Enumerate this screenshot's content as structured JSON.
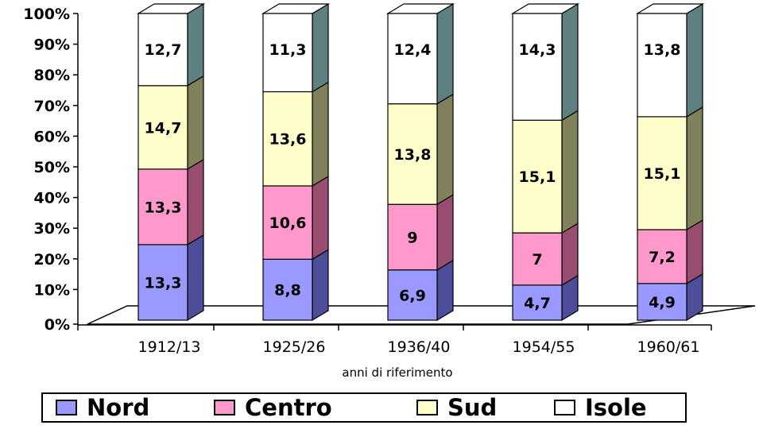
{
  "chart_data": {
    "type": "bar",
    "stacked": true,
    "three_d": true,
    "categories": [
      "1912/13",
      "1925/26",
      "1936/40",
      "1954/55",
      "1960/61"
    ],
    "series": [
      {
        "name": "Nord",
        "values": [
          13.3,
          8.8,
          6.9,
          4.7,
          4.9
        ],
        "labels": [
          "13,3",
          "8,8",
          "6,9",
          "4,7",
          "4,9"
        ],
        "color": "#9999ff"
      },
      {
        "name": "Centro",
        "values": [
          13.3,
          10.6,
          9,
          7,
          7.2
        ],
        "labels": [
          "13,3",
          "10,6",
          "9",
          "7",
          "7,2"
        ],
        "color": "#ff99cc"
      },
      {
        "name": "Sud",
        "values": [
          14.7,
          13.6,
          13.8,
          15.1,
          15.1
        ],
        "labels": [
          "14,7",
          "13,6",
          "13,8",
          "15,1",
          "15,1"
        ],
        "color": "#ffffcc"
      },
      {
        "name": "Isole",
        "values": [
          12.7,
          11.3,
          12.4,
          14.3,
          13.8
        ],
        "labels": [
          "12,7",
          "11,3",
          "12,4",
          "14,3",
          "13,8"
        ],
        "color": "#ffffff"
      }
    ],
    "ytick_labels": [
      "0%",
      "10%",
      "20%",
      "30%",
      "40%",
      "50%",
      "60%",
      "70%",
      "80%",
      "90%",
      "100%"
    ],
    "ylim": [
      0,
      100
    ],
    "xlabel": "anni di riferimento",
    "ylabel": "",
    "title": "",
    "legend_position": "bottom",
    "side_color": "#444444"
  }
}
